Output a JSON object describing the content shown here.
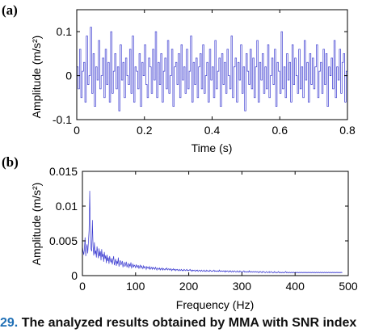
{
  "caption": {
    "figure_number": "29.",
    "text": " The analyzed results obtained by MMA with SNR index"
  },
  "chart_data": [
    {
      "type": "line",
      "panel_label": "(a)",
      "title": "",
      "xlabel": "Time (s)",
      "ylabel": "Amplitude (m/s²)",
      "xlim": [
        0,
        0.8
      ],
      "ylim": [
        -0.1,
        0.15
      ],
      "xticks": [
        0,
        0.2,
        0.4,
        0.6,
        0.8
      ],
      "xtick_labels": [
        "0",
        "0.2",
        "0.4",
        "0.6",
        "0.8"
      ],
      "yticks": [
        -0.1,
        0,
        0.1
      ],
      "ytick_labels": [
        "-0.1",
        "0",
        "0.1"
      ],
      "grid": false,
      "color": "#3a3ad0",
      "sample_step": 0.004,
      "values": [
        0.02,
        -0.03,
        0.06,
        -0.05,
        0.01,
        0.03,
        -0.06,
        0.09,
        -0.02,
        0.0,
        0.11,
        -0.04,
        0.05,
        -0.07,
        0.02,
        -0.01,
        0.08,
        -0.03,
        0.0,
        0.04,
        -0.05,
        0.06,
        -0.02,
        0.03,
        -0.06,
        0.1,
        -0.04,
        0.01,
        0.05,
        -0.03,
        0.02,
        -0.08,
        0.07,
        -0.01,
        0.03,
        -0.05,
        0.04,
        0.0,
        -0.02,
        0.06,
        -0.04,
        0.09,
        -0.06,
        0.02,
        0.01,
        -0.03,
        0.05,
        -0.07,
        0.03,
        0.0,
        0.07,
        -0.02,
        -0.05,
        0.04,
        0.02,
        -0.04,
        0.06,
        -0.01,
        0.1,
        -0.05,
        0.03,
        -0.02,
        0.05,
        -0.06,
        0.01,
        0.04,
        -0.03,
        0.08,
        -0.04,
        0.0,
        0.06,
        -0.07,
        0.02,
        0.03,
        -0.02,
        0.05,
        -0.05,
        0.07,
        -0.01,
        0.02,
        -0.04,
        0.06,
        -0.03,
        0.01,
        0.09,
        -0.06,
        0.03,
        -0.02,
        0.04,
        -0.05,
        0.02,
        0.05,
        -0.03,
        0.07,
        -0.04,
        0.0,
        0.03,
        -0.06,
        0.06,
        -0.01,
        0.02,
        -0.05,
        0.08,
        -0.03,
        0.01,
        0.04,
        -0.07,
        0.05,
        -0.02,
        0.03,
        -0.04,
        0.06,
        0.0,
        -0.03,
        0.09,
        -0.05,
        0.02,
        0.04,
        -0.06,
        0.03,
        -0.01,
        0.07,
        -0.04,
        0.02,
        -0.08,
        0.05,
        0.01,
        -0.02,
        0.06,
        -0.03,
        0.04,
        -0.05,
        0.02,
        0.08,
        -0.06,
        0.03,
        -0.01,
        0.05,
        -0.04,
        0.02,
        -0.03,
        0.07,
        -0.05,
        0.0,
        0.04,
        -0.02,
        0.06,
        -0.07,
        0.03,
        0.01,
        -0.04,
        0.1,
        -0.03,
        0.02,
        -0.05,
        0.05,
        -0.01,
        0.03,
        -0.06,
        0.07,
        -0.02,
        0.04,
        0.0,
        -0.04,
        0.06,
        -0.03,
        0.02,
        -0.05,
        0.08,
        -0.01,
        0.03,
        -0.06,
        0.05,
        -0.02,
        0.04,
        -0.03,
        0.02,
        0.07,
        -0.05,
        0.01,
        0.03,
        -0.04,
        0.06,
        -0.02,
        0.05,
        -0.07,
        0.02,
        0.0,
        0.04,
        -0.03,
        0.08,
        -0.05,
        0.02,
        -0.01,
        0.06,
        -0.04,
        0.03,
        0.05,
        -0.06,
        0.01,
        0.11,
        -0.03
      ]
    },
    {
      "type": "line",
      "panel_label": "(b)",
      "title": "",
      "xlabel": "Frequency (Hz)",
      "ylabel": "Amplitude (m/s²)",
      "xlim": [
        0,
        500
      ],
      "ylim": [
        0,
        0.015
      ],
      "xticks": [
        0,
        100,
        200,
        300,
        400,
        500
      ],
      "xtick_labels": [
        "0",
        "100",
        "200",
        "300",
        "400",
        "500"
      ],
      "yticks": [
        0,
        0.005,
        0.01,
        0.015
      ],
      "ytick_labels": [
        "0",
        "0.005",
        "0.01",
        "0.015"
      ],
      "grid": false,
      "color": "#3a3ad0",
      "peaks": [
        [
          5,
          0.0045
        ],
        [
          10,
          0.0055
        ],
        [
          15,
          0.0122
        ],
        [
          20,
          0.008
        ],
        [
          24,
          0.0048
        ],
        [
          30,
          0.0042
        ],
        [
          40,
          0.0035
        ],
        [
          50,
          0.0038
        ],
        [
          60,
          0.003
        ]
      ],
      "sample_step": 1.25,
      "values": [
        0.0042,
        0.0035,
        0.003,
        0.0038,
        0.0055,
        0.0028,
        0.004,
        0.0045,
        0.0032,
        0.0048,
        0.0065,
        0.0122,
        0.0055,
        0.0038,
        0.0035,
        0.008,
        0.0042,
        0.0029,
        0.0048,
        0.0031,
        0.0036,
        0.0026,
        0.0042,
        0.0033,
        0.0025,
        0.0039,
        0.0028,
        0.0035,
        0.0022,
        0.0038,
        0.0027,
        0.0031,
        0.002,
        0.0034,
        0.0024,
        0.0029,
        0.0018,
        0.003,
        0.0021,
        0.0026,
        0.0017,
        0.0028,
        0.0022,
        0.0019,
        0.0025,
        0.0016,
        0.0023,
        0.0028,
        0.0015,
        0.002,
        0.0024,
        0.0014,
        0.0021,
        0.0017,
        0.0026,
        0.0013,
        0.0019,
        0.0022,
        0.0015,
        0.0018,
        0.0021,
        0.0012,
        0.0017,
        0.0019,
        0.0013,
        0.0016,
        0.002,
        0.0012,
        0.0015,
        0.0018,
        0.0011,
        0.0016,
        0.0014,
        0.0019,
        0.0011,
        0.0013,
        0.0017,
        0.0012,
        0.0015,
        0.0014,
        0.0011,
        0.0016,
        0.0013,
        0.0012,
        0.0015,
        0.001,
        0.0013,
        0.0015,
        0.0011,
        0.0014,
        0.0012,
        0.001,
        0.0014,
        0.0011,
        0.0013,
        0.0012,
        0.0009,
        0.0013,
        0.0011,
        0.0012,
        0.001,
        0.0013,
        0.0009,
        0.0011,
        0.0012,
        0.0009,
        0.0012,
        0.001,
        0.0011,
        0.0009,
        0.0012,
        0.001,
        0.0008,
        0.0011,
        0.001,
        0.0009,
        0.0011,
        0.0008,
        0.001,
        0.0009,
        0.0011,
        0.0008,
        0.001,
        0.0009,
        0.0008,
        0.001,
        0.0009,
        0.0011,
        0.0008,
        0.0009,
        0.001,
        0.0008,
        0.0009,
        0.001,
        0.0007,
        0.0009,
        0.0008,
        0.001,
        0.0008,
        0.0009,
        0.0007,
        0.0009,
        0.0008,
        0.0009,
        0.0007,
        0.0008,
        0.0009,
        0.0007,
        0.0008,
        0.0009,
        0.0007,
        0.0008,
        0.0007,
        0.0009,
        0.0008,
        0.0007,
        0.0008,
        0.0009,
        0.0007,
        0.0008,
        0.0007,
        0.0008,
        0.0009,
        0.0007,
        0.0008,
        0.0006,
        0.0008,
        0.0007,
        0.0008,
        0.0007,
        0.0006,
        0.0008,
        0.0007,
        0.0008,
        0.0006,
        0.0007,
        0.0008,
        0.0007,
        0.0006,
        0.0008,
        0.0007,
        0.0006,
        0.0007,
        0.0008,
        0.0006,
        0.0007,
        0.0006,
        0.0008,
        0.0007,
        0.0006,
        0.0007,
        0.0006,
        0.0008,
        0.0007,
        0.0006,
        0.0007,
        0.0006,
        0.0007,
        0.0008,
        0.0006,
        0.0007,
        0.0006,
        0.0007,
        0.0006,
        0.0007,
        0.0006,
        0.0008,
        0.0006,
        0.0007,
        0.0006,
        0.0007,
        0.0006,
        0.0007,
        0.0006,
        0.0007,
        0.0005,
        0.0007,
        0.0006,
        0.0007,
        0.0006,
        0.0005,
        0.0007,
        0.0006,
        0.0007,
        0.0005,
        0.0006,
        0.0007,
        0.0005,
        0.0006,
        0.0007,
        0.0006,
        0.0005,
        0.0006,
        0.0007,
        0.0005,
        0.0006,
        0.0005,
        0.0007,
        0.0006,
        0.0005,
        0.0006,
        0.0005,
        0.0006,
        0.0007,
        0.0005,
        0.0006,
        0.0005,
        0.0006,
        0.0005,
        0.0006,
        0.0005,
        0.0007,
        0.0005,
        0.0006,
        0.0005,
        0.0006,
        0.0005,
        0.0006,
        0.0005,
        0.0006,
        0.0005,
        0.0006,
        0.0005,
        0.0006,
        0.0005,
        0.0004,
        0.0006,
        0.0005,
        0.0006,
        0.0005,
        0.0004,
        0.0006,
        0.0005,
        0.0006,
        0.0005,
        0.0004,
        0.0005,
        0.0006,
        0.0005,
        0.0004,
        0.0005,
        0.0006,
        0.0004,
        0.0005,
        0.0006,
        0.0005,
        0.0004,
        0.0005,
        0.0004,
        0.0006,
        0.0005,
        0.0004,
        0.0005,
        0.0004,
        0.0005,
        0.0006,
        0.0004,
        0.0005,
        0.0004,
        0.0005,
        0.0004,
        0.0005,
        0.0004,
        0.0005,
        0.0004,
        0.0005,
        0.0006,
        0.0004,
        0.0005,
        0.0004,
        0.0005,
        0.0004,
        0.0005,
        0.0004,
        0.0005,
        0.0004,
        0.0005,
        0.0004,
        0.0005,
        0.0004,
        0.0005,
        0.0004,
        0.0005,
        0.0004,
        0.0005,
        0.0004,
        0.0005,
        0.0004,
        0.0005,
        0.0004,
        0.0005,
        0.0004,
        0.0005,
        0.0004,
        0.0005,
        0.0004,
        0.0005,
        0.0004,
        0.0005,
        0.0004,
        0.0005,
        0.0004,
        0.0005,
        0.0004,
        0.0005,
        0.0004,
        0.0005,
        0.0004,
        0.0005,
        0.0004,
        0.0005,
        0.0004,
        0.0005,
        0.0004,
        0.0005,
        0.0004,
        0.0005,
        0.0004,
        0.0005,
        0.0004,
        0.0005,
        0.0004,
        0.0005,
        0.0004,
        0.0005,
        0.0004,
        0.0005,
        0.0004,
        0.0005,
        0.0004,
        0.0005,
        0.0004,
        0.0005,
        0.0004,
        0.0005,
        0.0004,
        0.0005,
        0.0004,
        0.0005,
        0.0004,
        0.0005,
        0.0004,
        0.0005,
        0.0004,
        0.0005,
        0.0004,
        0.0005,
        0.0004,
        0.0005,
        0.0004,
        0.0005,
        0.0004
      ]
    }
  ]
}
